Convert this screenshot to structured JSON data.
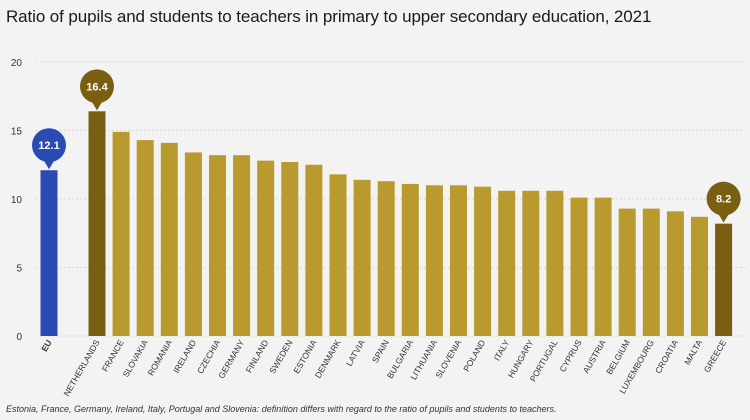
{
  "chart_data": {
    "type": "bar",
    "title": "Ratio of pupils and students to teachers in primary to upper secondary education, 2021",
    "footnote": "Estonia, France, Germany, Ireland, Italy, Portugal and Slovenia: definition differs with regard to the ratio of pupils and students to teachers.",
    "categories": [
      "EU",
      "NETHERLANDS",
      "FRANCE",
      "SLOVAKIA",
      "ROMANIA",
      "IRELAND",
      "CZECHIA",
      "GERMANY",
      "FINLAND",
      "SWEDEN",
      "ESTONIA",
      "DENMARK",
      "LATVIA",
      "SPAIN",
      "BULGARIA",
      "LITHUANIA",
      "SLOVENIA",
      "POLAND",
      "ITALY",
      "HUNGARY",
      "PORTUGAL",
      "CYPRUS",
      "AUSTRIA",
      "BELGIUM",
      "LUXEMBOURG",
      "CROATIA",
      "MALTA",
      "GREECE"
    ],
    "values": [
      12.1,
      16.4,
      14.9,
      14.3,
      14.1,
      13.4,
      13.2,
      13.2,
      12.8,
      12.7,
      12.5,
      11.8,
      11.4,
      11.3,
      11.1,
      11.0,
      11.0,
      10.9,
      10.6,
      10.6,
      10.6,
      10.1,
      10.1,
      9.3,
      9.3,
      9.1,
      8.7,
      8.2
    ],
    "ylim": [
      0,
      20
    ],
    "yticks": [
      "0",
      "5",
      "10",
      "15",
      "20"
    ],
    "callouts": [
      {
        "category": "EU",
        "label": "12.1"
      },
      {
        "category": "NETHERLANDS",
        "label": "16.4"
      },
      {
        "category": "GREECE",
        "label": "8.2"
      }
    ],
    "colors": {
      "eu": "#2a4bb3",
      "default": "#b89a2e",
      "highlight": "#7a5e12",
      "grid": "#d8d8d8",
      "tick_text": "#333333"
    }
  }
}
